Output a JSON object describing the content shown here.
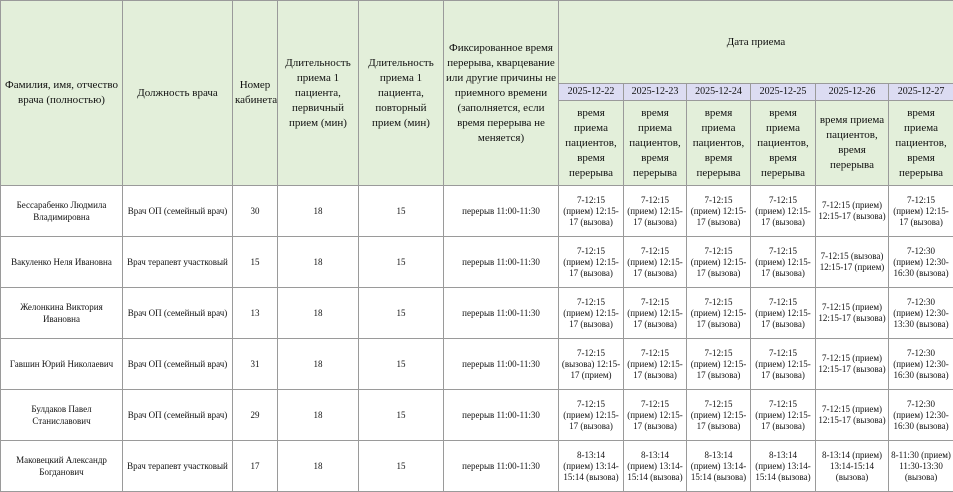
{
  "table": {
    "headers": [
      "Фамилия, имя, отчество врача (полностью)",
      "Должность врача",
      "Номер кабинета",
      "Длительность приема 1 пациента, первичный прием (мин)",
      "Длительность приема 1 пациента, повторный прием (мин)",
      "Фиксированное время перерыва, кварцевание или другие причины не приемного времени (заполняется, если время перерыва не меняется)"
    ],
    "date_group": "Дата приема",
    "dates": [
      "2025-12-22",
      "2025-12-23",
      "2025-12-24",
      "2025-12-25",
      "2025-12-26",
      "2025-12-27"
    ],
    "date_subheaders": [
      "время приема пациентов, время перерыва",
      "время приема пациентов, время перерыва",
      "время приема пациентов, время перерыва",
      "время приема пациентов, время перерыва",
      "время приема пациентов, время перерыва",
      "время приема пациентов, время перерыва"
    ],
    "rows": [
      [
        "Бессарабенко Людмила Владимировна",
        "Врач ОП (семейный врач)",
        30,
        18,
        15,
        "перерыв 11:00-11:30",
        "7-12:15 (прием) 12:15-17 (вызова)",
        "7-12:15 (прием) 12:15-17 (вызова)",
        "7-12:15 (прием) 12:15-17 (вызова)",
        "7-12:15 (прием) 12:15-17 (вызова)",
        "7-12:15 (прием) 12:15-17 (вызова)",
        "7-12:15 (прием) 12:15-17 (вызова)"
      ],
      [
        "Вакуленко Неля Ивановна",
        "Врач терапевт участковый",
        15,
        18,
        15,
        "перерыв 11:00-11:30",
        "7-12:15 (прием) 12:15-17 (вызова)",
        "7-12:15 (прием) 12:15-17 (вызова)",
        "7-12:15 (прием) 12:15-17 (вызова)",
        "7-12:15 (прием) 12:15-17 (вызова)",
        "7-12:15 (вызова) 12:15-17 (прием)",
        "7-12:30 (прием) 12:30-16:30 (вызова)"
      ],
      [
        "Желонкина Виктория Ивановна",
        "Врач ОП (семейный врач)",
        13,
        18,
        15,
        "перерыв 11:00-11:30",
        "7-12:15 (прием) 12:15-17 (вызова)",
        "7-12:15 (прием) 12:15-17 (вызова)",
        "7-12:15 (прием) 12:15-17 (вызова)",
        "7-12:15 (прием) 12:15-17 (вызова)",
        "7-12:15 (прием) 12:15-17 (вызова)",
        "7-12:30 (прием) 12:30-13:30 (вызова)"
      ],
      [
        "Гавшин Юрий Николаевич",
        "Врач ОП (семейный врач)",
        31,
        18,
        15,
        "перерыв 11:00-11:30",
        "7-12:15 (вызова) 12:15-17 (прием)",
        "7-12:15 (прием) 12:15-17 (вызова)",
        "7-12:15 (прием) 12:15-17 (вызова)",
        "7-12:15 (прием) 12:15-17 (вызова)",
        "7-12:15 (прием) 12:15-17 (вызова)",
        "7-12:30 (прием) 12:30-16:30 (вызова)"
      ],
      [
        "Булдаков Павел Станиславович",
        "Врач ОП (семейный врач)",
        29,
        18,
        15,
        "перерыв 11:00-11:30",
        "7-12:15 (прием) 12:15-17 (вызова)",
        "7-12:15 (прием) 12:15-17 (вызова)",
        "7-12:15 (прием) 12:15-17 (вызова)",
        "7-12:15 (прием) 12:15-17 (вызова)",
        "7-12:15 (прием) 12:15-17 (вызова)",
        "7-12:30 (прием) 12:30-16:30 (вызова)"
      ],
      [
        "Маковецкий Александр Богданович",
        "Врач терапевт участковый",
        17,
        18,
        15,
        "перерыв 11:00-11:30",
        "8-13:14 (прием) 13:14-15:14 (вызова)",
        "8-13:14 (прием) 13:14-15:14 (вызова)",
        "8-13:14 (прием) 13:14-15:14 (вызова)",
        "8-13:14 (прием) 13:14-15:14 (вызова)",
        "8-13:14 (прием) 13:14-15:14 (вызова)",
        "8-11:30 (прием) 11:30-13:30 (вызова)"
      ]
    ]
  }
}
